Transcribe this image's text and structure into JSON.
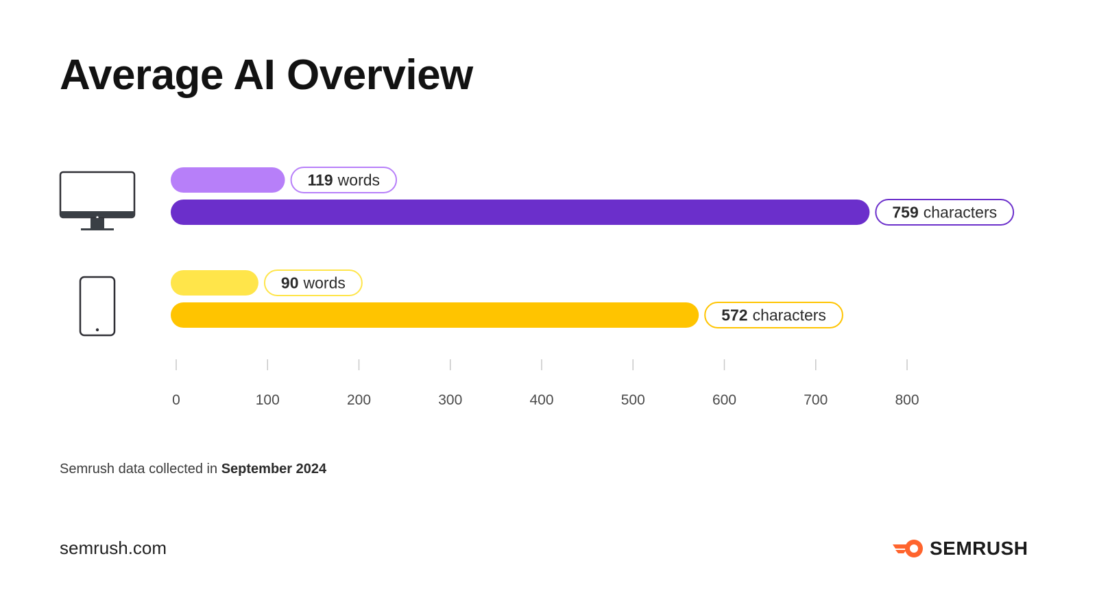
{
  "title": "Average AI Overview",
  "footer": {
    "source_prefix": "Semrush data collected in",
    "source_date": "September 2024",
    "site": "semrush.com",
    "brand": "SEMRUSH"
  },
  "colors": {
    "desktop_words": "#b77ff9",
    "desktop_chars": "#6b2fcb",
    "mobile_words": "#ffe54a",
    "mobile_chars": "#ffc400",
    "tick": "#c8c8c8",
    "axis_text": "#4a4a4a",
    "logo_orange": "#ff642d"
  },
  "chart_data": {
    "type": "bar",
    "orientation": "horizontal",
    "title": "Average AI Overview",
    "xlim": [
      0,
      800
    ],
    "x_ticks": [
      0,
      100,
      200,
      300,
      400,
      500,
      600,
      700,
      800
    ],
    "groups": [
      {
        "device": "desktop",
        "icon": "desktop-monitor-icon",
        "series": [
          {
            "name": "words",
            "value": 119,
            "label_num": "119",
            "label_unit": "words"
          },
          {
            "name": "characters",
            "value": 759,
            "label_num": "759",
            "label_unit": "characters"
          }
        ]
      },
      {
        "device": "mobile",
        "icon": "mobile-phone-icon",
        "series": [
          {
            "name": "words",
            "value": 90,
            "label_num": "90",
            "label_unit": "words"
          },
          {
            "name": "characters",
            "value": 572,
            "label_num": "572",
            "label_unit": "characters"
          }
        ]
      }
    ]
  }
}
